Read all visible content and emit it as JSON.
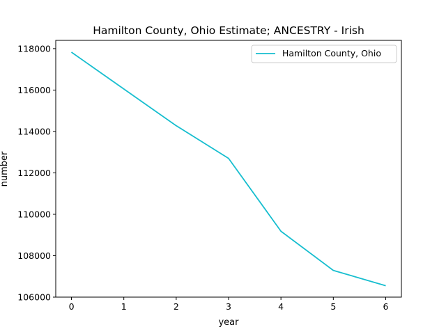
{
  "chart_data": {
    "type": "line",
    "title": "Hamilton County, Ohio Estimate; ANCESTRY - Irish",
    "xlabel": "year",
    "ylabel": "number",
    "x": [
      0,
      1,
      2,
      3,
      4,
      5,
      6
    ],
    "series": [
      {
        "name": "Hamilton County, Ohio",
        "color": "#17becf",
        "values": [
          117830,
          116050,
          114280,
          112700,
          109180,
          107290,
          106550
        ]
      }
    ],
    "xlim": [
      -0.3,
      6.3
    ],
    "ylim": [
      106000,
      118400
    ],
    "xticks": [
      "0",
      "1",
      "2",
      "3",
      "4",
      "5",
      "6"
    ],
    "yticks": [
      "106000",
      "108000",
      "110000",
      "112000",
      "114000",
      "116000",
      "118000"
    ],
    "grid": false,
    "legend_position": "top-right"
  }
}
